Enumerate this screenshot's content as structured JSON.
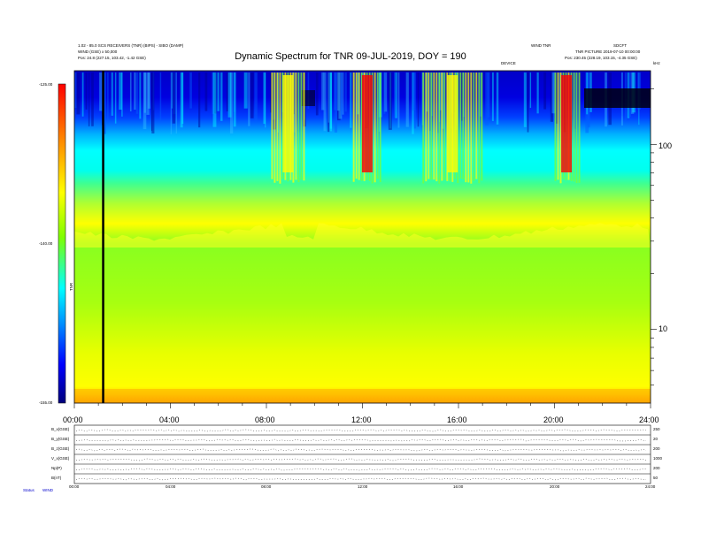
{
  "chart_data": {
    "type": "heatmap",
    "title": "Dynamic Spectrum for TNR 09-JUL-2019, DOY = 190",
    "xlabel": "",
    "ylabel": "",
    "x_ticks": [
      "00:00",
      "04:00",
      "08:00",
      "12:00",
      "16:00",
      "20:00",
      "24:00"
    ],
    "y_ticks_right": [
      "100",
      "10"
    ],
    "colorbar": {
      "ticks": [
        "-125.00",
        "-140.00",
        "-155.00"
      ],
      "range": [
        -155,
        -125
      ],
      "label": "TNR",
      "colors": [
        "#00007a",
        "#0000ff",
        "#0090ff",
        "#00ffff",
        "#7fff00",
        "#ffff00",
        "#ff8c00",
        "#ff0000"
      ]
    },
    "y_scale": "log",
    "y_range_khz": [
      4,
      250
    ],
    "x_range_hours": [
      0,
      24
    ],
    "vertical_marker_hour": 1.2,
    "bursts": [
      {
        "start_hour": 8.2,
        "end_hour": 9.6,
        "peak_color": "#ffff00"
      },
      {
        "start_hour": 11.6,
        "end_hour": 12.8,
        "peak_color": "#ff0000"
      },
      {
        "start_hour": 14.5,
        "end_hour": 17.0,
        "peak_color": "#ffff00"
      },
      {
        "start_hour": 20.0,
        "end_hour": 21.0,
        "peak_color": "#ff0000"
      }
    ]
  },
  "header": {
    "top_left_line1": "1.02 - 85.0 SCS RECEIVERS (TNR) (BIPS) - SIBO (DAMP)",
    "top_left_line2": "WIND (GSE) x 50,000",
    "top_left_line3": "Pos: 24.8 (227.15, 103.42, -1.42 GSE)",
    "top_right_line1": "WIND TNR",
    "top_right_line2": "SDCFT",
    "top_right_line3": "TNR PICTURE 2019-07-10 00:00:00",
    "top_right_line4": "Pos: 230.45 (228.19, 103.15, -4.35 GSE)",
    "mid_label": "DEVICE",
    "khz_label": "kHz"
  },
  "bottom_panels": {
    "labels": [
      "B_x(GSE)",
      "B_y(GSE)",
      "B_z(GSE)",
      "V_x(GSE)",
      "Np(P)",
      "B(nT)"
    ],
    "right_ticks": [
      "250",
      "20",
      "200",
      "1000",
      "200",
      "50"
    ],
    "time_ticks": [
      "00:00",
      "04:00",
      "08:00",
      "12:00",
      "16:00",
      "20:00",
      "24:00"
    ],
    "footer_label": "Status",
    "footer_value": "WIND"
  }
}
